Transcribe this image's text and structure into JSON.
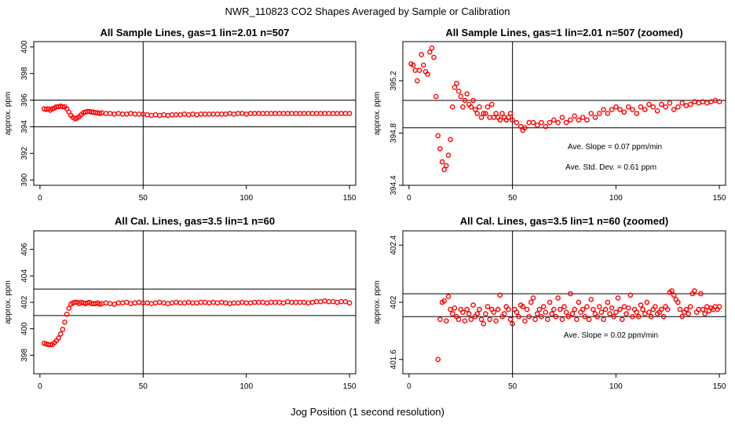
{
  "figure": {
    "title": "NWR_110823  CO2 Shapes Averaged by Sample or Calibration",
    "xlabel": "Jog Position (1 second resolution)"
  },
  "chart_data": [
    {
      "type": "scatter",
      "title": "All Sample Lines, gas=1 lin=2.01 n=507",
      "xlabel": "",
      "ylabel": "approx. ppm",
      "xlim": [
        -3,
        153
      ],
      "ylim": [
        389.6,
        400.4
      ],
      "xticks": [
        0,
        50,
        100,
        150
      ],
      "yticks": [
        390,
        392,
        394,
        396,
        398,
        400
      ],
      "hlines": [
        394,
        396
      ],
      "vlines": [
        50
      ],
      "grid": false,
      "marker_color": "#ff0000",
      "series": [
        {
          "x": [
            2,
            3,
            4,
            5,
            6,
            7,
            8,
            9,
            10,
            11,
            12,
            13,
            14,
            15,
            16,
            17,
            18,
            19,
            20,
            21,
            22,
            23,
            24,
            25,
            26,
            27,
            28,
            29,
            30,
            32,
            34,
            36,
            38,
            40,
            42,
            44,
            46,
            48,
            50,
            52,
            54,
            56,
            58,
            60,
            62,
            64,
            66,
            68,
            70,
            72,
            74,
            76,
            78,
            80,
            82,
            84,
            86,
            88,
            90,
            92,
            94,
            96,
            98,
            100,
            102,
            104,
            106,
            108,
            110,
            112,
            114,
            116,
            118,
            120,
            122,
            124,
            126,
            128,
            130,
            132,
            134,
            136,
            138,
            140,
            142,
            144,
            146,
            148,
            150
          ],
          "values": [
            395.35,
            395.3,
            395.35,
            395.25,
            395.35,
            395.4,
            395.5,
            395.5,
            395.55,
            395.5,
            395.5,
            395.35,
            395.1,
            394.85,
            394.7,
            394.6,
            394.65,
            394.75,
            394.9,
            395.05,
            395.1,
            395.15,
            395.15,
            395.1,
            395.1,
            395.05,
            395.05,
            395.0,
            395.05,
            395.0,
            395.0,
            394.95,
            395.0,
            394.95,
            394.95,
            395.0,
            394.95,
            394.95,
            394.95,
            394.9,
            394.85,
            394.9,
            394.85,
            394.9,
            394.85,
            394.9,
            394.9,
            394.9,
            394.95,
            394.9,
            394.95,
            394.9,
            394.95,
            394.95,
            394.95,
            394.95,
            394.95,
            394.95,
            394.95,
            395.0,
            394.95,
            395.0,
            395.0,
            394.95,
            395.0,
            395.0,
            395.0,
            395.0,
            395.0,
            395.0,
            395.0,
            395.0,
            395.0,
            395.0,
            395.0,
            395.0,
            395.0,
            395.0,
            395.0,
            395.0,
            395.0,
            395.0,
            395.0,
            395.0,
            395.0,
            395.0,
            395.0,
            395.0,
            395.0
          ]
        }
      ],
      "annotations": []
    },
    {
      "type": "scatter",
      "title": "All Sample Lines, gas=1 lin=2.01 n=507 (zoomed)",
      "xlabel": "",
      "ylabel": "approx. ppm",
      "xlim": [
        -3,
        153
      ],
      "ylim": [
        394.4,
        395.5
      ],
      "xticks": [
        0,
        50,
        100,
        150
      ],
      "yticks": [
        394.4,
        394.8,
        395.2
      ],
      "hlines": [
        394.84,
        395.05
      ],
      "vlines": [
        50
      ],
      "grid": false,
      "marker_color": "#ff0000",
      "series": [
        {
          "x": [
            1,
            2,
            3,
            4,
            5,
            6,
            7,
            8,
            9,
            10,
            11,
            12,
            13,
            14,
            15,
            16,
            17,
            18,
            19,
            20,
            21,
            22,
            23,
            24,
            25,
            26,
            27,
            28,
            29,
            30,
            31,
            32,
            33,
            34,
            35,
            36,
            37,
            38,
            39,
            40,
            41,
            42,
            43,
            44,
            45,
            46,
            47,
            48,
            49,
            50,
            52,
            54,
            55,
            56,
            58,
            60,
            62,
            64,
            66,
            68,
            70,
            72,
            74,
            76,
            78,
            80,
            82,
            84,
            86,
            88,
            90,
            92,
            94,
            96,
            98,
            100,
            102,
            104,
            106,
            108,
            110,
            112,
            114,
            116,
            118,
            120,
            122,
            124,
            126,
            128,
            130,
            132,
            134,
            136,
            138,
            140,
            142,
            144,
            146,
            148,
            150
          ],
          "values": [
            395.33,
            395.32,
            395.28,
            395.2,
            395.28,
            395.4,
            395.32,
            395.27,
            395.25,
            395.42,
            395.45,
            395.38,
            395.08,
            394.78,
            394.68,
            394.58,
            394.52,
            394.55,
            394.63,
            394.75,
            395.0,
            395.15,
            395.18,
            395.12,
            395.08,
            395.0,
            395.05,
            395.1,
            395.02,
            395.0,
            395.05,
            394.98,
            394.95,
            395.0,
            394.92,
            394.95,
            394.95,
            395.0,
            394.92,
            395.02,
            394.92,
            394.95,
            394.92,
            394.9,
            394.95,
            394.92,
            394.9,
            394.92,
            394.95,
            394.9,
            394.88,
            394.85,
            394.82,
            394.84,
            394.88,
            394.88,
            394.86,
            394.88,
            394.85,
            394.88,
            394.9,
            394.88,
            394.92,
            394.88,
            394.9,
            394.93,
            394.9,
            394.92,
            394.9,
            394.95,
            394.92,
            394.95,
            394.98,
            394.95,
            394.98,
            395.0,
            394.98,
            394.96,
            395.0,
            394.98,
            394.95,
            395.0,
            394.98,
            395.02,
            395.0,
            394.97,
            395.02,
            395.0,
            395.03,
            394.98,
            395.0,
            395.03,
            395.01,
            395.02,
            395.04,
            395.03,
            395.04,
            395.03,
            395.04,
            395.05,
            395.04
          ]
        }
      ],
      "annotations": [
        {
          "text": "Ave. Slope =  0.07  ppm/min"
        },
        {
          "text": "Ave. Std. Dev. =  0.61  ppm"
        }
      ]
    },
    {
      "type": "scatter",
      "title": "All Cal. Lines, gas=3.5 lin=1 n=60",
      "xlabel": "",
      "ylabel": "approx. ppm",
      "xlim": [
        -3,
        153
      ],
      "ylim": [
        396.6,
        407.4
      ],
      "xticks": [
        0,
        50,
        100,
        150
      ],
      "yticks": [
        398,
        400,
        402,
        404,
        406
      ],
      "hlines": [
        401,
        403
      ],
      "vlines": [
        50
      ],
      "grid": false,
      "marker_color": "#ff0000",
      "series": [
        {
          "x": [
            2,
            3,
            4,
            5,
            6,
            7,
            8,
            9,
            10,
            11,
            12,
            13,
            14,
            15,
            16,
            17,
            18,
            19,
            20,
            21,
            22,
            23,
            24,
            25,
            26,
            27,
            28,
            29,
            30,
            32,
            34,
            36,
            38,
            40,
            42,
            44,
            46,
            48,
            50,
            52,
            54,
            56,
            58,
            60,
            62,
            64,
            66,
            68,
            70,
            72,
            74,
            76,
            78,
            80,
            82,
            84,
            86,
            88,
            90,
            92,
            94,
            96,
            98,
            100,
            102,
            104,
            106,
            108,
            110,
            112,
            114,
            116,
            118,
            120,
            122,
            124,
            126,
            128,
            130,
            132,
            134,
            136,
            138,
            140,
            142,
            144,
            146,
            148,
            150
          ],
          "values": [
            398.9,
            398.85,
            398.8,
            398.8,
            398.8,
            398.95,
            399.1,
            399.3,
            399.6,
            399.95,
            400.5,
            401.1,
            401.55,
            401.85,
            401.95,
            402.0,
            402.0,
            401.9,
            402.0,
            401.95,
            401.9,
            401.95,
            402.0,
            401.9,
            401.9,
            401.9,
            401.95,
            401.85,
            401.9,
            401.95,
            401.9,
            401.85,
            401.95,
            401.95,
            402.0,
            401.9,
            401.95,
            402.0,
            401.95,
            401.95,
            401.9,
            401.95,
            402.0,
            401.95,
            401.9,
            401.95,
            402.0,
            401.95,
            401.95,
            402.0,
            401.95,
            401.95,
            402.0,
            402.0,
            401.95,
            402.0,
            401.95,
            402.0,
            401.95,
            401.9,
            401.95,
            401.95,
            402.0,
            401.95,
            401.95,
            402.0,
            402.0,
            402.0,
            401.95,
            402.0,
            402.0,
            402.0,
            401.95,
            402.05,
            402.0,
            402.0,
            402.0,
            402.0,
            401.95,
            402.0,
            402.05,
            402.05,
            402.1,
            402.05,
            402.05,
            402.0,
            402.05,
            402.05,
            401.95
          ]
        }
      ],
      "annotations": []
    },
    {
      "type": "scatter",
      "title": "All Cal. Lines, gas=3.5 lin=1 n=60 (zoomed)",
      "xlabel": "",
      "ylabel": "approx. ppm",
      "xlim": [
        -3,
        153
      ],
      "ylim": [
        401.5,
        402.5
      ],
      "xticks": [
        0,
        50,
        100,
        150
      ],
      "yticks": [
        401.6,
        402.0,
        402.4
      ],
      "hlines": [
        401.9,
        402.06
      ],
      "vlines": [
        50
      ],
      "grid": false,
      "marker_color": "#ff0000",
      "series": [
        {
          "x": [
            14,
            15,
            16,
            17,
            18,
            19,
            20,
            21,
            22,
            23,
            24,
            25,
            26,
            27,
            28,
            29,
            30,
            31,
            32,
            33,
            34,
            35,
            36,
            37,
            38,
            39,
            40,
            41,
            42,
            43,
            44,
            45,
            46,
            47,
            48,
            49,
            50,
            51,
            52,
            53,
            54,
            55,
            56,
            57,
            58,
            59,
            60,
            61,
            62,
            63,
            64,
            65,
            66,
            67,
            68,
            69,
            70,
            71,
            72,
            73,
            74,
            75,
            76,
            77,
            78,
            79,
            80,
            81,
            82,
            83,
            84,
            85,
            86,
            87,
            88,
            89,
            90,
            91,
            92,
            93,
            94,
            95,
            96,
            97,
            98,
            99,
            100,
            101,
            102,
            103,
            104,
            105,
            106,
            107,
            108,
            109,
            110,
            111,
            112,
            113,
            114,
            115,
            116,
            117,
            118,
            119,
            120,
            121,
            122,
            123,
            124,
            125,
            126,
            127,
            128,
            129,
            130,
            131,
            132,
            133,
            134,
            135,
            136,
            137,
            138,
            139,
            140,
            141,
            142,
            143,
            144,
            145,
            146,
            147,
            148,
            149,
            150
          ],
          "values": [
            401.6,
            401.88,
            402.0,
            402.01,
            401.87,
            402.04,
            401.95,
            401.92,
            401.96,
            401.9,
            401.88,
            401.95,
            401.93,
            401.87,
            401.95,
            401.92,
            401.88,
            401.98,
            401.9,
            401.92,
            401.95,
            401.88,
            401.85,
            401.92,
            401.97,
            401.88,
            401.95,
            401.93,
            401.87,
            401.95,
            402.05,
            401.9,
            401.92,
            401.97,
            401.95,
            401.88,
            401.85,
            401.95,
            401.93,
            401.9,
            401.98,
            401.97,
            401.87,
            401.95,
            401.9,
            402.0,
            402.03,
            401.88,
            401.92,
            401.95,
            401.9,
            401.97,
            401.93,
            401.88,
            402.0,
            401.92,
            401.95,
            401.9,
            402.03,
            401.95,
            401.88,
            401.97,
            401.93,
            401.9,
            402.06,
            401.92,
            401.95,
            401.88,
            402.0,
            401.93,
            401.95,
            401.9,
            401.97,
            401.88,
            402.02,
            401.95,
            401.92,
            401.9,
            401.97,
            401.93,
            401.88,
            401.95,
            402.0,
            401.92,
            401.96,
            401.9,
            401.93,
            402.03,
            401.95,
            401.88,
            401.97,
            401.92,
            401.96,
            402.05,
            401.9,
            401.95,
            401.93,
            401.9,
            401.98,
            401.95,
            401.92,
            402.0,
            401.93,
            401.9,
            401.95,
            401.97,
            401.92,
            401.93,
            401.95,
            401.9,
            401.97,
            401.95,
            402.07,
            402.08,
            402.05,
            402.02,
            402.0,
            401.95,
            401.9,
            401.93,
            401.95,
            401.92,
            401.97,
            402.06,
            402.08,
            401.93,
            401.95,
            402.06,
            401.95,
            401.92,
            401.97,
            401.94,
            401.96,
            401.95,
            401.97,
            401.95,
            401.97
          ]
        }
      ],
      "annotations": [
        {
          "text": "Ave. Slope =  0.02  ppm/min"
        }
      ]
    }
  ]
}
